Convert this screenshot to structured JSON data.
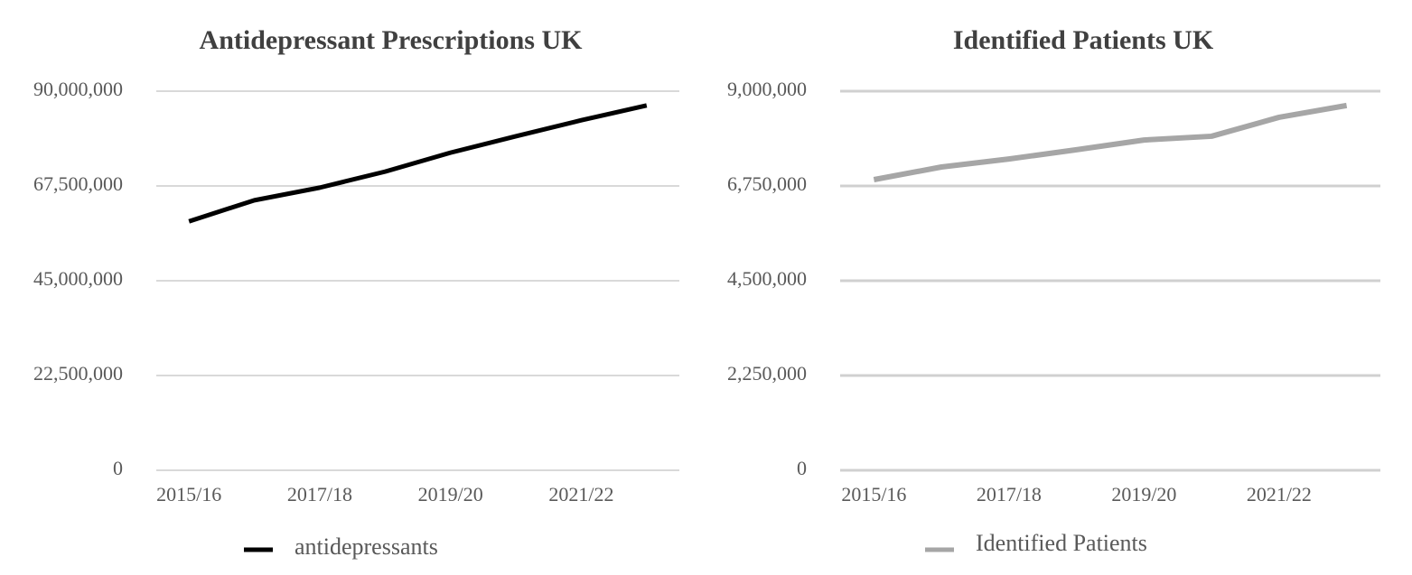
{
  "chart_data": [
    {
      "type": "line",
      "title": "Antidepressant Prescriptions UK",
      "categories": [
        "2015/16",
        null,
        "2017/18",
        null,
        "2019/20",
        null,
        "2021/22",
        null
      ],
      "series": [
        {
          "name": "antidepressants",
          "color": "#000000",
          "values": [
            59100000,
            64100000,
            67100000,
            70900000,
            75400000,
            79300000,
            83100000,
            86600000
          ]
        }
      ],
      "ylim": [
        0,
        90000000
      ],
      "yticks": [
        0,
        {
          "value": 22500000,
          "label": "22,500,000"
        },
        {
          "value": 45000000,
          "label": "45,000,000"
        },
        {
          "value": 67500000,
          "label": "67,500,000"
        },
        {
          "value": 90000000,
          "label": "90,000,000"
        }
      ],
      "grid": true
    },
    {
      "type": "line",
      "title": "Identified Patients UK",
      "categories": [
        "2015/16",
        null,
        "2017/18",
        null,
        "2019/20",
        null,
        "2021/22",
        null
      ],
      "series": [
        {
          "name": "Identified Patients",
          "color": "#a6a6a6",
          "values": [
            6900000,
            7200000,
            7390000,
            7610000,
            7840000,
            7930000,
            8380000,
            8660000
          ]
        }
      ],
      "ylim": [
        0,
        9000000
      ],
      "yticks": [
        0,
        {
          "value": 2250000,
          "label": "2,250,000"
        },
        {
          "value": 4500000,
          "label": "4,500,000"
        },
        {
          "value": 6750000,
          "label": "6,750,000"
        },
        {
          "value": 9000000,
          "label": "9,000,000"
        }
      ],
      "grid": true
    }
  ]
}
